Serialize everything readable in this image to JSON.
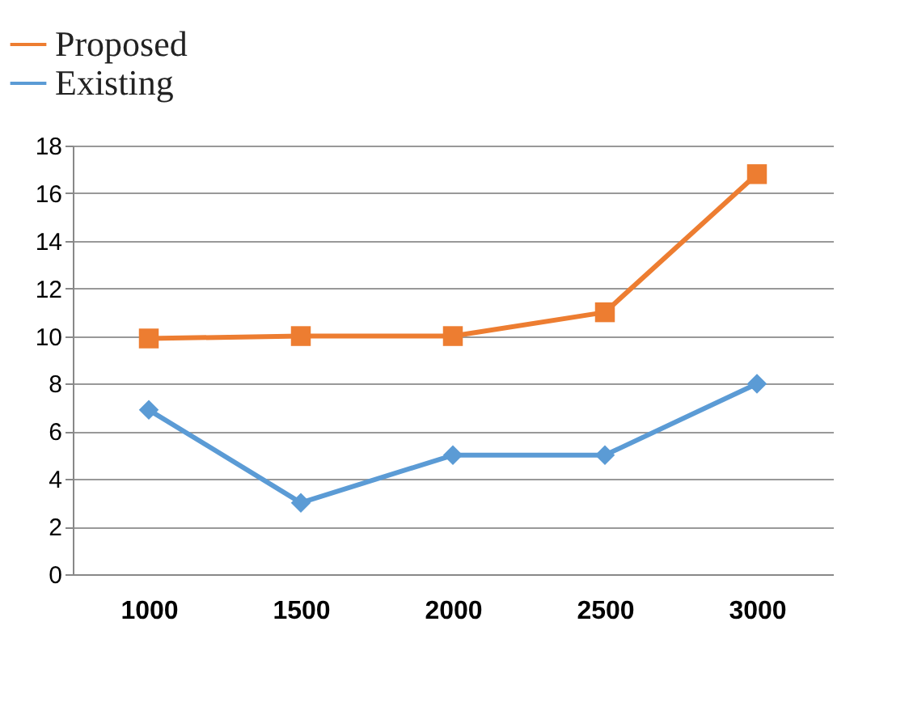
{
  "chart_data": {
    "type": "line",
    "categories": [
      "1000",
      "1500",
      "2000",
      "2500",
      "3000"
    ],
    "series": [
      {
        "name": "Proposed",
        "color": "#ed7d31",
        "marker": "square",
        "values": [
          9.9,
          10,
          10,
          11,
          16.8
        ]
      },
      {
        "name": "Existing",
        "color": "#5b9bd5",
        "marker": "diamond",
        "values": [
          6.9,
          3,
          5,
          5,
          8
        ]
      }
    ],
    "ylim": [
      0,
      18
    ],
    "yticks": [
      0,
      2,
      4,
      6,
      8,
      10,
      12,
      14,
      16,
      18
    ],
    "grid": "y",
    "legend": "top left",
    "line_style": "solid"
  }
}
